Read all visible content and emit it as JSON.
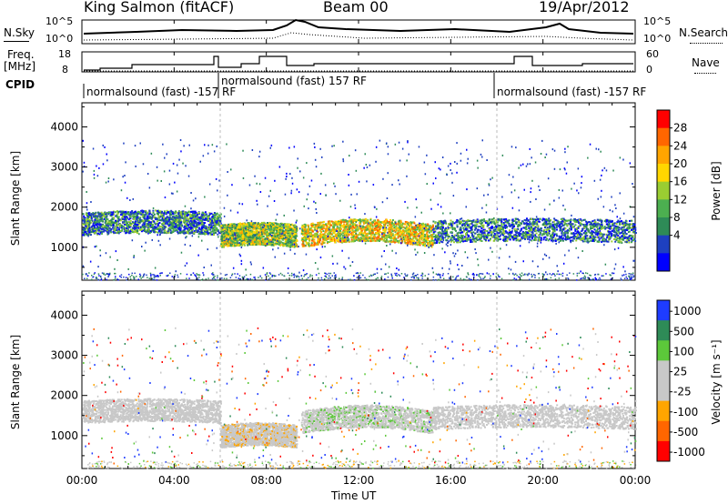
{
  "header": {
    "station": "King Salmon (fitACF)",
    "beam": "Beam 00",
    "date": "19/Apr/2012"
  },
  "noise_panel": {
    "left_label": "N.Sky",
    "right_label": "N.Search",
    "left_ticks": [
      "10^5",
      "10^0"
    ],
    "right_ticks": [
      "10^5",
      "10^0"
    ]
  },
  "freq_panel": {
    "left_label_1": "Freq.",
    "left_label_2": "[MHz]",
    "right_label": "Nave",
    "left_ticks": [
      "18",
      "8"
    ],
    "right_ticks": [
      "60",
      "0"
    ]
  },
  "cpid": {
    "label": "CPID",
    "segments": [
      {
        "text": "normalsound (fast) -157 RF",
        "start_hour": 0
      },
      {
        "text": "normalsound (fast) 157 RF",
        "start_hour": 6
      },
      {
        "text": "normalsound (fast) -157 RF",
        "start_hour": 18
      }
    ]
  },
  "power_panel": {
    "ylabel": "Slant Range [km]",
    "cbar_label": "Power [dB]",
    "cbar_ticks": [
      "28",
      "24",
      "20",
      "16",
      "12",
      "8",
      "4"
    ]
  },
  "velocity_panel": {
    "ylabel": "Slant Range [km]",
    "cbar_label": "Velocity [m s⁻¹]",
    "cbar_ticks": [
      "1000",
      "500",
      "100",
      "25",
      "-25",
      "-100",
      "-500",
      "-1000"
    ]
  },
  "xaxis": {
    "label": "Time UT",
    "ticks": [
      "00:00",
      "04:00",
      "08:00",
      "12:00",
      "16:00",
      "20:00",
      "00:00"
    ]
  },
  "colors": {
    "power_scale": [
      "#0000ff",
      "#1e40c0",
      "#2e8b57",
      "#4caf50",
      "#9acd32",
      "#ffd700",
      "#ffa500",
      "#ff6600",
      "#ff0000"
    ],
    "velocity_scale": [
      "#1e3cff",
      "#2e8b57",
      "#5cc83a",
      "#c8c8c8",
      "#c8c8c8",
      "#ffa500",
      "#ff6600",
      "#ff0000"
    ]
  },
  "chart_data": [
    {
      "type": "heatmap",
      "title": "",
      "xlabel": "Time UT",
      "ylabel": "Slant Range [km]",
      "xlim": [
        0,
        24
      ],
      "ylim": [
        180,
        4600
      ],
      "yticks": [
        1000,
        2000,
        3000,
        4000
      ],
      "quantity": "Power [dB]",
      "zlim": [
        0,
        30
      ],
      "bands": [
        {
          "x": [
            0,
            6
          ],
          "range_center": 1600,
          "value": 8
        },
        {
          "x": [
            6,
            9.3
          ],
          "range_center": 1300,
          "value": 14
        },
        {
          "x": [
            9.5,
            15.2
          ],
          "range_center": 1300,
          "value": 18
        },
        {
          "x": [
            15.2,
            24
          ],
          "range_center": 1400,
          "value": 8
        }
      ]
    },
    {
      "type": "heatmap",
      "title": "",
      "xlabel": "Time UT",
      "ylabel": "Slant Range [km]",
      "xlim": [
        0,
        24
      ],
      "ylim": [
        180,
        4600
      ],
      "yticks": [
        1000,
        2000,
        3000,
        4000
      ],
      "quantity": "Velocity [m s-1]",
      "zlim": [
        -1000,
        1000
      ],
      "bands": [
        {
          "x": [
            0,
            6
          ],
          "range_center": 1600,
          "value": 0
        },
        {
          "x": [
            6,
            9.3
          ],
          "range_center": 1000,
          "value": -150
        },
        {
          "x": [
            9.5,
            15.2
          ],
          "range_center": 1350,
          "value": 150
        },
        {
          "x": [
            15.2,
            24
          ],
          "range_center": 1450,
          "value": 0
        }
      ]
    }
  ]
}
